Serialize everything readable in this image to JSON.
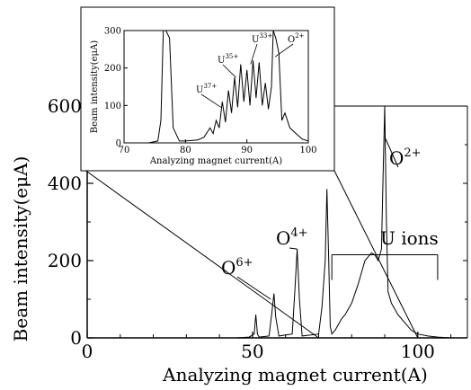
{
  "chart_data": [
    {
      "type": "line",
      "xlabel": "Analyzing magnet current(A)",
      "ylabel": "Beam intensity(eμA)",
      "xlim": [
        0,
        115
      ],
      "ylim": [
        0,
        600
      ],
      "x_ticks": [
        0,
        50,
        100
      ],
      "y_ticks": [
        0,
        200,
        400,
        600
      ],
      "tick_labels_x": [
        "0",
        "50",
        "100"
      ],
      "tick_labels_y": [
        "0",
        "200",
        "400",
        "600"
      ],
      "annotations": [
        {
          "label": "O",
          "sup": "6+",
          "x": 56,
          "y": 115
        },
        {
          "label": "O",
          "sup": "4+",
          "x": 73,
          "y": 385
        },
        {
          "label": "O",
          "sup": "2+",
          "x": 90,
          "y": 600
        },
        {
          "label": "U ions",
          "x": 87,
          "y": 215
        }
      ],
      "series": [
        {
          "x": [
            45,
            49,
            50.5,
            51,
            51.5,
            52,
            55,
            55.8,
            56.5,
            57,
            58,
            62,
            62.8,
            63.5,
            64.2,
            65,
            70,
            71,
            72,
            72.5,
            73,
            73.5,
            74,
            75,
            77,
            78,
            80,
            82,
            83,
            84,
            85,
            86,
            87,
            88,
            89,
            89.5,
            90,
            90.5,
            91,
            92,
            94,
            96,
            98,
            100,
            103,
            106,
            110
          ],
          "y": [
            0,
            2,
            10,
            60,
            10,
            2,
            5,
            60,
            115,
            55,
            5,
            10,
            120,
            230,
            100,
            5,
            10,
            80,
            200,
            385,
            220,
            30,
            10,
            20,
            50,
            60,
            90,
            140,
            170,
            200,
            210,
            220,
            215,
            200,
            230,
            420,
            600,
            300,
            120,
            90,
            60,
            40,
            20,
            10,
            5,
            2,
            0
          ]
        }
      ]
    },
    {
      "type": "line",
      "xlabel": "Analyzing magnet current(A)",
      "ylabel": "Beam intensity(eμA)",
      "xlim": [
        70,
        100
      ],
      "ylim": [
        0,
        300
      ],
      "x_ticks": [
        70,
        80,
        90,
        100
      ],
      "y_ticks": [
        0,
        100,
        200,
        300
      ],
      "tick_labels_x": [
        "70",
        "80",
        "90",
        "100"
      ],
      "tick_labels_y": [
        "0",
        "100",
        "200",
        "300"
      ],
      "annotations": [
        {
          "label": "U",
          "sup": "37+",
          "x": 85.2,
          "y": 150
        },
        {
          "label": "U",
          "sup": "35+",
          "x": 88.3,
          "y": 205
        },
        {
          "label": "U",
          "sup": "33+",
          "x": 91.2,
          "y": 240
        },
        {
          "label": "O",
          "sup": "2+",
          "x": 95.2,
          "y": 265
        }
      ],
      "series": [
        {
          "x": [
            70,
            74,
            75.5,
            76,
            76.4,
            76.8,
            77.4,
            78,
            79,
            80,
            82,
            83,
            84,
            84.5,
            85,
            85.5,
            86,
            86.5,
            87,
            87.5,
            88,
            88.5,
            89,
            89.5,
            90,
            90.5,
            91,
            91.5,
            92,
            92.5,
            93,
            93.5,
            94,
            94.3,
            94.7,
            95.2,
            95.7,
            96.2,
            97,
            98,
            99,
            100
          ],
          "y": [
            0,
            0,
            5,
            60,
            300,
            300,
            280,
            40,
            5,
            5,
            8,
            15,
            40,
            25,
            60,
            40,
            110,
            55,
            140,
            80,
            175,
            95,
            210,
            110,
            195,
            100,
            220,
            120,
            215,
            100,
            160,
            90,
            150,
            300,
            280,
            240,
            60,
            80,
            40,
            25,
            10,
            5
          ]
        }
      ]
    }
  ]
}
